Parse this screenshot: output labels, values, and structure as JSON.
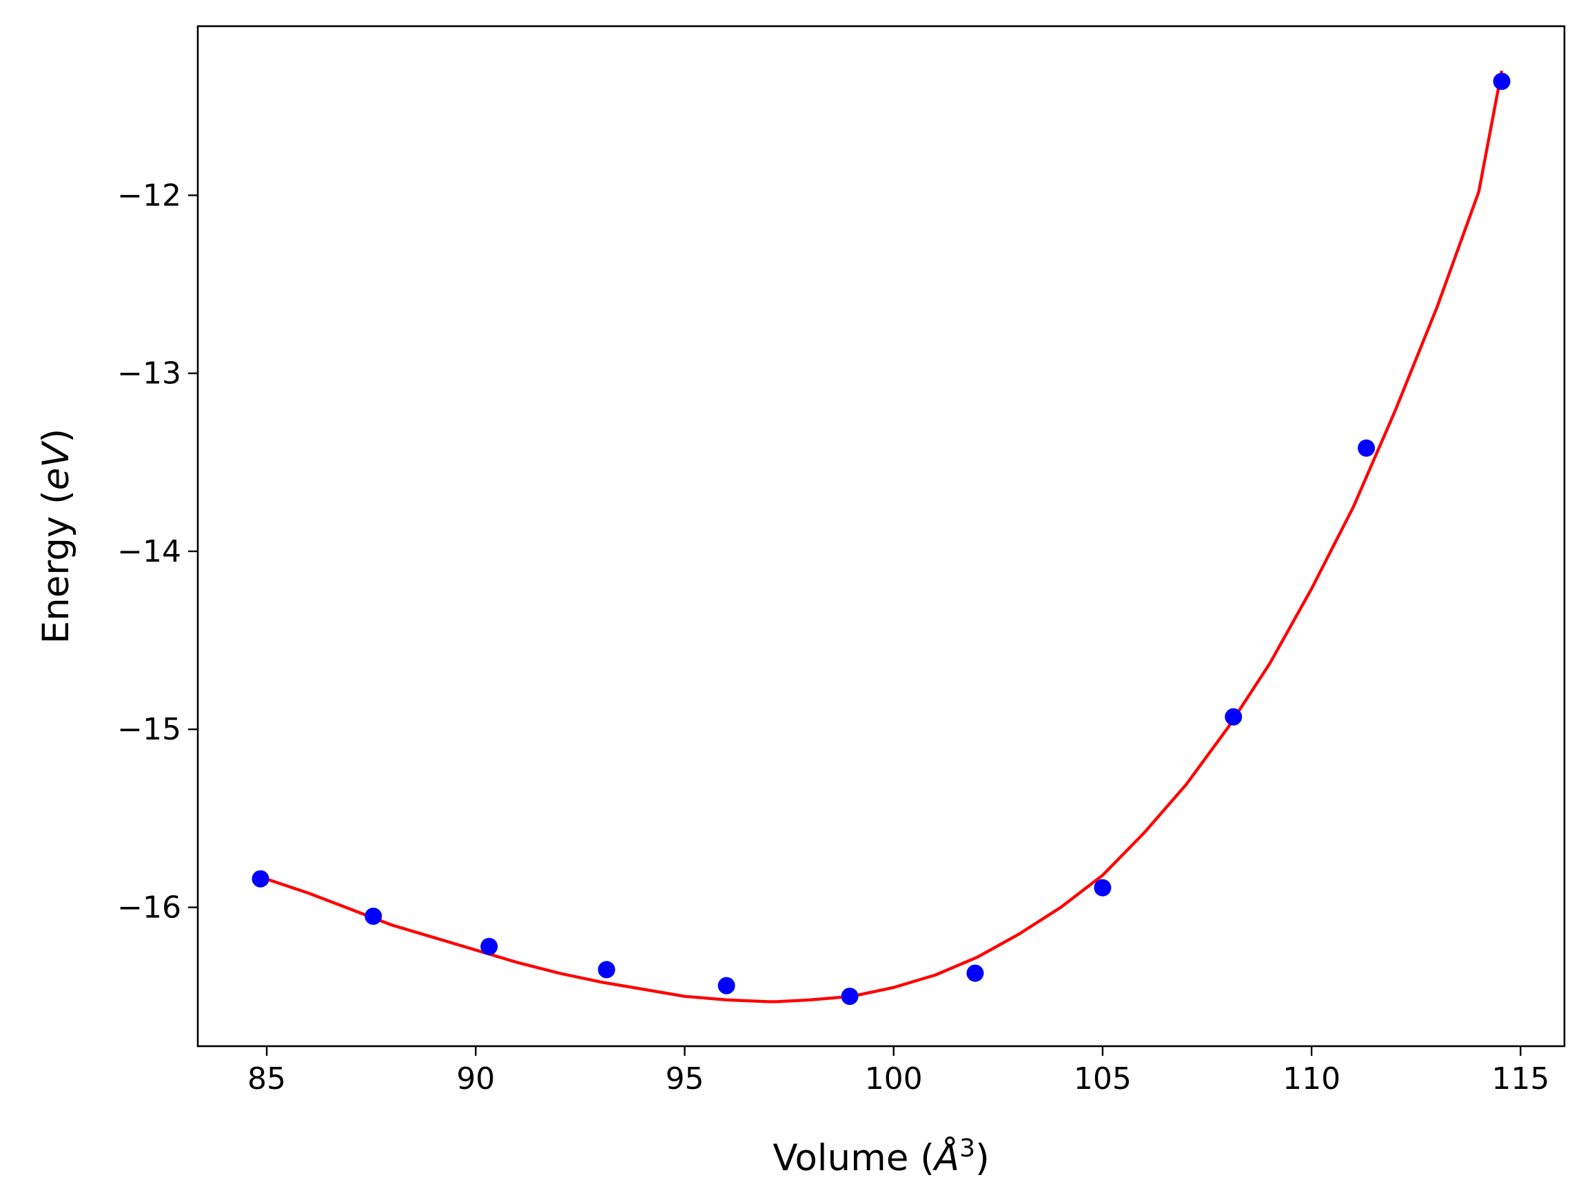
{
  "chart_data": {
    "type": "scatter",
    "xlabel": {
      "prefix": "Volume (",
      "symbol": "Å",
      "sup": "3",
      "suffix": ")"
    },
    "ylabel": {
      "prefix": "Energy (",
      "symbol": "eV",
      "suffix": ")"
    },
    "xlim": [
      83.35,
      116.05
    ],
    "ylim": [
      -16.78,
      -11.05
    ],
    "xticks": [
      85,
      90,
      95,
      100,
      105,
      110,
      115
    ],
    "xtick_labels": [
      "85",
      "90",
      "95",
      "100",
      "105",
      "110",
      "115"
    ],
    "yticks": [
      -16,
      -15,
      -14,
      -13,
      -12
    ],
    "ytick_labels": [
      "−16",
      "−15",
      "−14",
      "−13",
      "−12"
    ],
    "grid": false,
    "legend": "none",
    "series": [
      {
        "kind": "points",
        "color": "#0000ff",
        "x": [
          84.85,
          87.55,
          90.32,
          93.13,
          96.0,
          98.95,
          101.95,
          105.0,
          108.13,
          111.31,
          114.55
        ],
        "y": [
          -15.84,
          -16.05,
          -16.22,
          -16.35,
          -16.44,
          -16.5,
          -16.37,
          -15.89,
          -14.93,
          -13.42,
          -11.36
        ]
      },
      {
        "kind": "fit-curve",
        "color": "#ff0000",
        "x": [
          84.85,
          86.0,
          87.0,
          88.0,
          89.0,
          90.0,
          91.0,
          92.0,
          93.0,
          94.0,
          95.0,
          96.0,
          97.0,
          97.2,
          98.0,
          99.0,
          100.0,
          101.0,
          102.0,
          103.0,
          104.0,
          105.0,
          106.0,
          107.0,
          108.0,
          109.0,
          110.0,
          111.0,
          112.0,
          113.0,
          114.0,
          114.55
        ],
        "y": [
          -15.83,
          -15.92,
          -16.01,
          -16.1,
          -16.17,
          -16.24,
          -16.31,
          -16.37,
          -16.42,
          -16.46,
          -16.5,
          -16.52,
          -16.53,
          -16.53,
          -16.52,
          -16.5,
          -16.45,
          -16.38,
          -16.28,
          -16.15,
          -16.0,
          -15.82,
          -15.58,
          -15.31,
          -14.99,
          -14.63,
          -14.21,
          -13.75,
          -13.21,
          -12.63,
          -11.98,
          -11.3
        ]
      }
    ]
  }
}
